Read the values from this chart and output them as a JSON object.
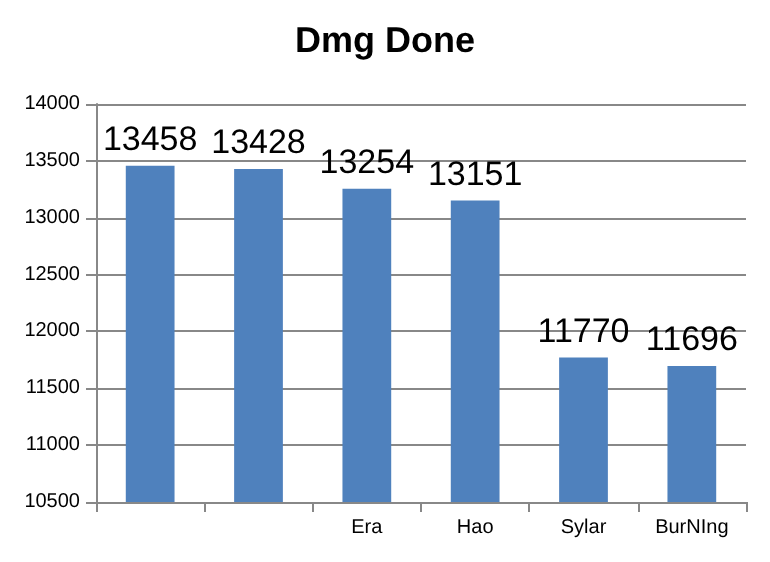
{
  "chart_data": {
    "type": "bar",
    "title": "Dmg Done",
    "categories": [
      null,
      null,
      "Era",
      "Hao",
      "Sylar",
      "BurNIng"
    ],
    "values": [
      13458,
      13428,
      13254,
      13151,
      11770,
      11696
    ],
    "color": "#4f81bd",
    "ylim": [
      10500,
      14000
    ],
    "yticks": [
      10500,
      11000,
      11500,
      12000,
      12500,
      13000,
      13500,
      14000
    ],
    "grid": "y",
    "data_labels": true
  }
}
